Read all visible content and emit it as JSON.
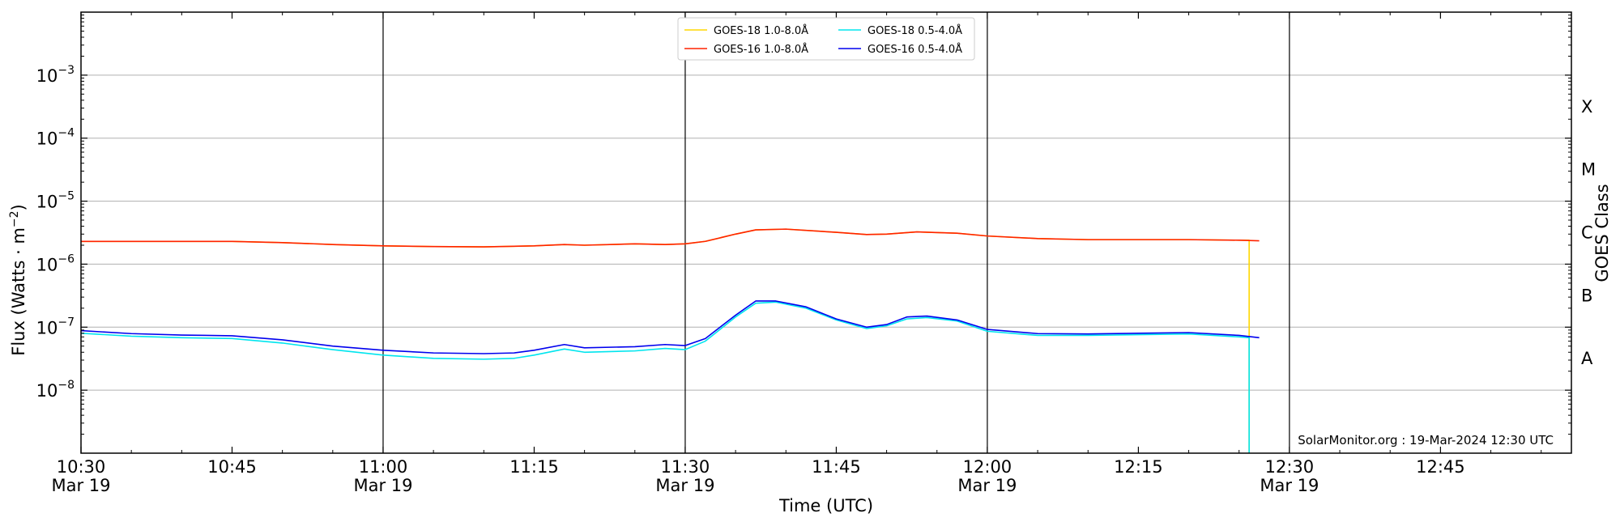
{
  "chart_data": {
    "type": "line",
    "credit": "SolarMonitor.org : 19-Mar-2024 12:30 UTC",
    "xlabel": "Time (UTC)",
    "ylabel": "Flux (Watts · m⁻²)",
    "y2label": "GOES Class",
    "x_range": [
      "10:30",
      "12:58"
    ],
    "y_range": [
      1e-09,
      0.01
    ],
    "yscale": "log",
    "grid": "horizontal at decades, vertical at half hours",
    "legend_position": "top-center",
    "x_ticks": [
      {
        "time": "10:30",
        "label": "10:30",
        "sublabel": "Mar 19"
      },
      {
        "time": "10:45",
        "label": "10:45",
        "sublabel": ""
      },
      {
        "time": "11:00",
        "label": "11:00",
        "sublabel": "Mar 19"
      },
      {
        "time": "11:15",
        "label": "11:15",
        "sublabel": ""
      },
      {
        "time": "11:30",
        "label": "11:30",
        "sublabel": "Mar 19"
      },
      {
        "time": "11:45",
        "label": "11:45",
        "sublabel": ""
      },
      {
        "time": "12:00",
        "label": "12:00",
        "sublabel": "Mar 19"
      },
      {
        "time": "12:15",
        "label": "12:15",
        "sublabel": ""
      },
      {
        "time": "12:30",
        "label": "12:30",
        "sublabel": "Mar 19"
      },
      {
        "time": "12:45",
        "label": "12:45",
        "sublabel": ""
      }
    ],
    "y_ticks": [
      {
        "value": 1e-08,
        "label": "10",
        "exp": "−8"
      },
      {
        "value": 1e-07,
        "label": "10",
        "exp": "−7"
      },
      {
        "value": 1e-06,
        "label": "10",
        "exp": "−6"
      },
      {
        "value": 1e-05,
        "label": "10",
        "exp": "−5"
      },
      {
        "value": 0.0001,
        "label": "10",
        "exp": "−4"
      },
      {
        "value": 0.001,
        "label": "10",
        "exp": "−3"
      }
    ],
    "class_labels": [
      {
        "label": "A",
        "value": 3.16e-08
      },
      {
        "label": "B",
        "value": 3.16e-07
      },
      {
        "label": "C",
        "value": 3.16e-06
      },
      {
        "label": "M",
        "value": 3.16e-05
      },
      {
        "label": "X",
        "value": 0.000316
      }
    ],
    "series": [
      {
        "name": "GOES-18 1.0-8.0Å",
        "color": "#ffd700",
        "points": [
          [
            "10:30",
            2.3e-06
          ],
          [
            "10:35",
            2.3e-06
          ],
          [
            "10:40",
            2.3e-06
          ],
          [
            "10:45",
            2.3e-06
          ],
          [
            "10:50",
            2.2e-06
          ],
          [
            "10:55",
            2.05e-06
          ],
          [
            "11:00",
            1.95e-06
          ],
          [
            "11:05",
            1.9e-06
          ],
          [
            "11:10",
            1.88e-06
          ],
          [
            "11:15",
            1.95e-06
          ],
          [
            "11:18",
            2.05e-06
          ],
          [
            "11:20",
            2e-06
          ],
          [
            "11:25",
            2.1e-06
          ],
          [
            "11:28",
            2.05e-06
          ],
          [
            "11:30",
            2.1e-06
          ],
          [
            "11:32",
            2.3e-06
          ],
          [
            "11:35",
            3e-06
          ],
          [
            "11:37",
            3.5e-06
          ],
          [
            "11:40",
            3.6e-06
          ],
          [
            "11:45",
            3.2e-06
          ],
          [
            "11:48",
            2.95e-06
          ],
          [
            "11:50",
            3e-06
          ],
          [
            "11:53",
            3.25e-06
          ],
          [
            "11:57",
            3.1e-06
          ],
          [
            "12:00",
            2.8e-06
          ],
          [
            "12:05",
            2.55e-06
          ],
          [
            "12:10",
            2.45e-06
          ],
          [
            "12:15",
            2.45e-06
          ],
          [
            "12:20",
            2.45e-06
          ],
          [
            "12:25",
            2.4e-06
          ],
          [
            "12:26",
            2.4e-06
          ]
        ],
        "drop_at": "12:26"
      },
      {
        "name": "GOES-16 1.0-8.0Å",
        "color": "#ff2200",
        "points": [
          [
            "10:30",
            2.3e-06
          ],
          [
            "10:35",
            2.3e-06
          ],
          [
            "10:40",
            2.3e-06
          ],
          [
            "10:45",
            2.3e-06
          ],
          [
            "10:50",
            2.2e-06
          ],
          [
            "10:55",
            2.05e-06
          ],
          [
            "11:00",
            1.95e-06
          ],
          [
            "11:05",
            1.9e-06
          ],
          [
            "11:10",
            1.88e-06
          ],
          [
            "11:15",
            1.95e-06
          ],
          [
            "11:18",
            2.05e-06
          ],
          [
            "11:20",
            2e-06
          ],
          [
            "11:25",
            2.1e-06
          ],
          [
            "11:28",
            2.05e-06
          ],
          [
            "11:30",
            2.1e-06
          ],
          [
            "11:32",
            2.3e-06
          ],
          [
            "11:35",
            3e-06
          ],
          [
            "11:37",
            3.5e-06
          ],
          [
            "11:40",
            3.6e-06
          ],
          [
            "11:45",
            3.2e-06
          ],
          [
            "11:48",
            2.95e-06
          ],
          [
            "11:50",
            3e-06
          ],
          [
            "11:53",
            3.25e-06
          ],
          [
            "11:57",
            3.1e-06
          ],
          [
            "12:00",
            2.8e-06
          ],
          [
            "12:05",
            2.55e-06
          ],
          [
            "12:10",
            2.45e-06
          ],
          [
            "12:15",
            2.45e-06
          ],
          [
            "12:20",
            2.45e-06
          ],
          [
            "12:25",
            2.4e-06
          ],
          [
            "12:27",
            2.35e-06
          ]
        ]
      },
      {
        "name": "GOES-18 0.5-4.0Å",
        "color": "#00e5ee",
        "points": [
          [
            "10:30",
            8e-08
          ],
          [
            "10:35",
            7.2e-08
          ],
          [
            "10:40",
            6.8e-08
          ],
          [
            "10:45",
            6.6e-08
          ],
          [
            "10:50",
            5.6e-08
          ],
          [
            "10:55",
            4.4e-08
          ],
          [
            "11:00",
            3.6e-08
          ],
          [
            "11:05",
            3.2e-08
          ],
          [
            "11:10",
            3.1e-08
          ],
          [
            "11:13",
            3.2e-08
          ],
          [
            "11:15",
            3.6e-08
          ],
          [
            "11:18",
            4.5e-08
          ],
          [
            "11:20",
            4e-08
          ],
          [
            "11:25",
            4.2e-08
          ],
          [
            "11:28",
            4.6e-08
          ],
          [
            "11:30",
            4.4e-08
          ],
          [
            "11:32",
            6e-08
          ],
          [
            "11:35",
            1.45e-07
          ],
          [
            "11:37",
            2.4e-07
          ],
          [
            "11:39",
            2.5e-07
          ],
          [
            "11:42",
            2e-07
          ],
          [
            "11:45",
            1.3e-07
          ],
          [
            "11:48",
            9.5e-08
          ],
          [
            "11:50",
            1.05e-07
          ],
          [
            "11:52",
            1.35e-07
          ],
          [
            "11:54",
            1.42e-07
          ],
          [
            "11:57",
            1.25e-07
          ],
          [
            "12:00",
            8.6e-08
          ],
          [
            "12:05",
            7.4e-08
          ],
          [
            "12:10",
            7.4e-08
          ],
          [
            "12:15",
            7.6e-08
          ],
          [
            "12:20",
            7.8e-08
          ],
          [
            "12:25",
            7e-08
          ],
          [
            "12:26",
            6.8e-08
          ]
        ],
        "drop_at": "12:26"
      },
      {
        "name": "GOES-16 0.5-4.0Å",
        "color": "#0000ee",
        "points": [
          [
            "10:30",
            8.8e-08
          ],
          [
            "10:35",
            7.9e-08
          ],
          [
            "10:40",
            7.5e-08
          ],
          [
            "10:45",
            7.3e-08
          ],
          [
            "10:50",
            6.3e-08
          ],
          [
            "10:55",
            5e-08
          ],
          [
            "11:00",
            4.3e-08
          ],
          [
            "11:05",
            3.9e-08
          ],
          [
            "11:10",
            3.8e-08
          ],
          [
            "11:13",
            3.9e-08
          ],
          [
            "11:15",
            4.3e-08
          ],
          [
            "11:18",
            5.3e-08
          ],
          [
            "11:20",
            4.7e-08
          ],
          [
            "11:25",
            4.9e-08
          ],
          [
            "11:28",
            5.3e-08
          ],
          [
            "11:30",
            5.1e-08
          ],
          [
            "11:32",
            6.6e-08
          ],
          [
            "11:35",
            1.55e-07
          ],
          [
            "11:37",
            2.6e-07
          ],
          [
            "11:39",
            2.6e-07
          ],
          [
            "11:42",
            2.1e-07
          ],
          [
            "11:45",
            1.35e-07
          ],
          [
            "11:48",
            1e-07
          ],
          [
            "11:50",
            1.1e-07
          ],
          [
            "11:52",
            1.45e-07
          ],
          [
            "11:54",
            1.5e-07
          ],
          [
            "11:57",
            1.3e-07
          ],
          [
            "12:00",
            9.2e-08
          ],
          [
            "12:05",
            7.9e-08
          ],
          [
            "12:10",
            7.8e-08
          ],
          [
            "12:15",
            8e-08
          ],
          [
            "12:20",
            8.2e-08
          ],
          [
            "12:25",
            7.4e-08
          ],
          [
            "12:27",
            6.8e-08
          ]
        ]
      }
    ]
  }
}
